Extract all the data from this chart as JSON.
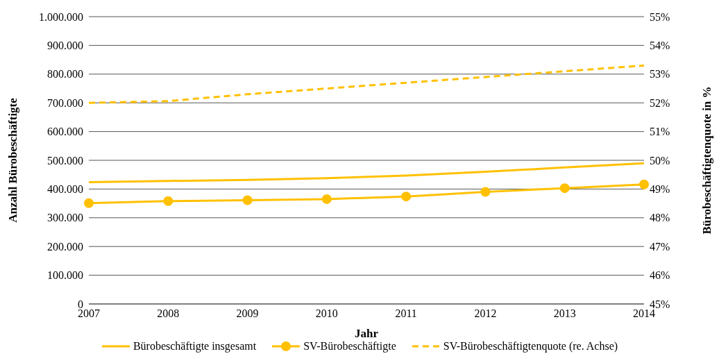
{
  "chart_data": {
    "type": "line",
    "xlabel": "Jahr",
    "ylabel": "Anzahl Bürobeschäftigte",
    "y2label": "Bürobeschäftigtenquote in %",
    "categories": [
      "2007",
      "2008",
      "2009",
      "2010",
      "2011",
      "2012",
      "2013",
      "2014"
    ],
    "series": [
      {
        "name": "Bürobeschäftigte insgesamt",
        "color": "#ffc000",
        "values": [
          424000,
          428000,
          432000,
          438000,
          447000,
          460000,
          475000,
          490000
        ],
        "marker": "none",
        "line_style": "solid"
      },
      {
        "name": "SV-Bürobeschäftigte",
        "color": "#ffc000",
        "values": [
          351000,
          358000,
          361000,
          365000,
          374000,
          390000,
          403000,
          416000
        ],
        "marker": "circle",
        "line_style": "solid"
      },
      {
        "name": "SV-Bürobeschäftigtenquote (re. Achse)",
        "color": "#ffc000",
        "values": [
          52.0,
          52.06,
          52.3,
          52.5,
          52.7,
          52.9,
          53.1,
          53.3
        ],
        "axis": "y2",
        "marker": "none",
        "line_style": "dashed"
      }
    ],
    "ylim": [
      0,
      1000000
    ],
    "yticks": [
      0,
      {
        "value": 100000,
        "label": "100.000"
      },
      {
        "value": 200000,
        "label": "200.000"
      },
      {
        "value": 300000,
        "label": "300.000"
      },
      {
        "value": 400000,
        "label": "400.000"
      },
      {
        "value": 500000,
        "label": "500.000"
      },
      {
        "value": 600000,
        "label": "600.000"
      },
      {
        "value": 700000,
        "label": "700.000"
      },
      {
        "value": 800000,
        "label": "800.000"
      },
      {
        "value": 900000,
        "label": "900.000"
      },
      {
        "value": 1000000,
        "label": "1.000.000"
      }
    ],
    "y2lim": [
      45,
      55
    ],
    "y2ticks": [
      {
        "value": 45,
        "label": "45%"
      },
      {
        "value": 46,
        "label": "46%"
      },
      {
        "value": 47,
        "label": "47%"
      },
      {
        "value": 48,
        "label": "48%"
      },
      {
        "value": 49,
        "label": "49%"
      },
      {
        "value": 50,
        "label": "50%"
      },
      {
        "value": 51,
        "label": "51%"
      },
      {
        "value": 52,
        "label": "52%"
      },
      {
        "value": 53,
        "label": "53%"
      },
      {
        "value": 54,
        "label": "54%"
      },
      {
        "value": 55,
        "label": "55%"
      }
    ],
    "grid": "y",
    "legend": "bottom"
  }
}
